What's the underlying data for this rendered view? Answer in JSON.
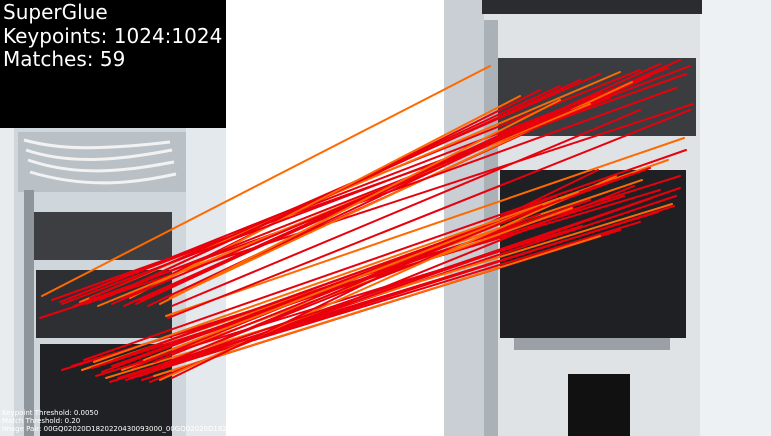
{
  "overlay": {
    "title": "SuperGlue",
    "keypoints": "Keypoints: 1024:1024",
    "matches": "Matches: 59",
    "keypoint_threshold": "Keypoint Threshold: 0.0050",
    "match_threshold": "Match Threshold: 0.20",
    "image_pair": "Image Pair: 00GQ02020D1820220430093000_00GQ02020D1820"
  },
  "colors": {
    "left_background": "#000000",
    "right_background": "#ffffff",
    "match_red": "#e8000c",
    "match_orange": "#ff6a00"
  }
}
